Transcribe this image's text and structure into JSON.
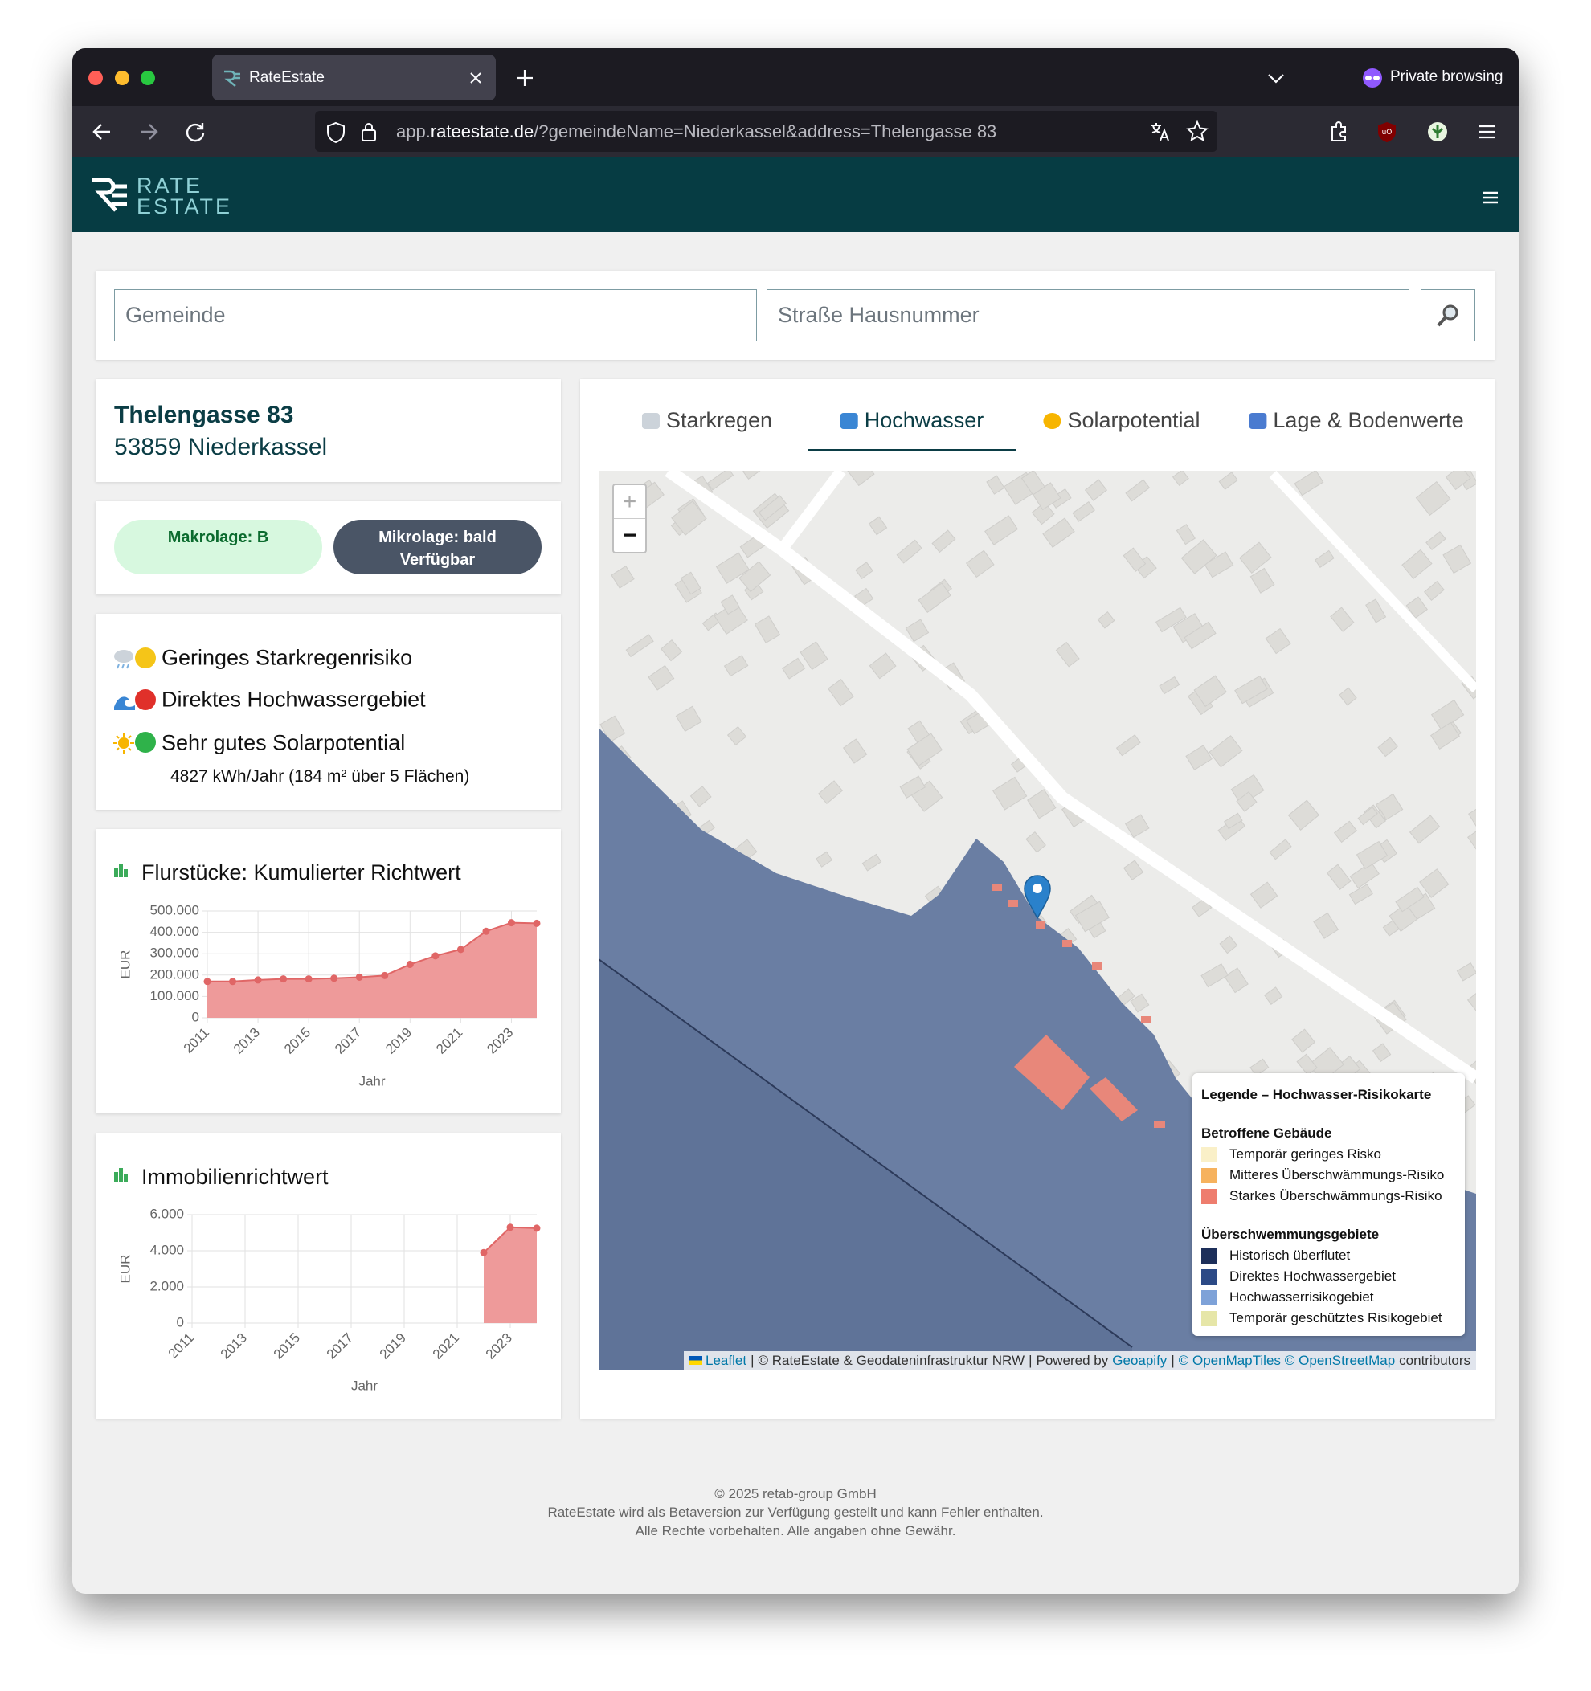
{
  "browser": {
    "tab_title": "RateEstate",
    "private_label": "Private browsing",
    "url_host_prefix": "app.",
    "url_domain": "rateestate.de",
    "url_path": "/?gemeindeName=Niederkassel&address=Thelengasse 83"
  },
  "header": {
    "logo_line1": "RATE",
    "logo_line2": "ESTATE"
  },
  "search": {
    "municipality_placeholder": "Gemeinde",
    "address_placeholder": "Straße Hausnummer"
  },
  "address": {
    "street": "Thelengasse 83",
    "city": "53859 Niederkassel"
  },
  "badges": [
    {
      "text": "Makrolage: B"
    },
    {
      "text": "Mikrolage: bald Verfügbar"
    }
  ],
  "risks": [
    {
      "text": "Geringes Starkregenrisiko",
      "status_color": "#f5c518"
    },
    {
      "text": "Direktes Hochwassergebiet",
      "status_color": "#e0302a"
    },
    {
      "text": "Sehr gutes Solarpotential",
      "status_color": "#2fb24a"
    }
  ],
  "solar_detail": "4827 kWh/Jahr (184 m² über 5 Flächen)",
  "chart_data": [
    {
      "type": "area",
      "title": "Flurstücke: Kumulierter Richtwert",
      "x_label": "Jahr",
      "y_label": "EUR",
      "categories": [
        "2011",
        null,
        "2013",
        null,
        "2015",
        null,
        "2017",
        null,
        "2019",
        null,
        "2021",
        null,
        "2023",
        null
      ],
      "values": [
        170000,
        170000,
        177000,
        182000,
        182000,
        185000,
        190000,
        198000,
        250000,
        290000,
        320000,
        405000,
        445000,
        442000
      ],
      "color": "#e06666",
      "fill_color": "#ee9a9a",
      "ylim": [
        0,
        500000
      ],
      "yticks": [
        0,
        {
          "value": 100000,
          "label": "100.000"
        },
        {
          "value": 200000,
          "label": "200.000"
        },
        {
          "value": 300000,
          "label": "300.000"
        },
        {
          "value": 400000,
          "label": "400.000"
        },
        {
          "value": 500000,
          "label": "500.000"
        }
      ],
      "grid": true
    },
    {
      "type": "area",
      "title": "Immobilienrichtwert",
      "x_label": "Jahr",
      "y_label": "EUR",
      "categories": [
        "2011",
        null,
        "2013",
        null,
        "2015",
        null,
        "2017",
        null,
        "2019",
        null,
        "2021",
        null,
        "2023",
        null
      ],
      "values": [
        null,
        null,
        null,
        null,
        null,
        null,
        null,
        null,
        null,
        null,
        null,
        3900,
        5300,
        5250
      ],
      "color": "#e06666",
      "fill_color": "#ee9a9a",
      "ylim": [
        0,
        6000
      ],
      "yticks": [
        0,
        {
          "value": 2000,
          "label": "2.000"
        },
        {
          "value": 4000,
          "label": "4.000"
        },
        {
          "value": 6000,
          "label": "6.000"
        }
      ],
      "grid": true
    }
  ],
  "tabs": [
    {
      "label": "Starkregen",
      "active": false
    },
    {
      "label": "Hochwasser",
      "active": true
    },
    {
      "label": "Solarpotential",
      "active": false
    },
    {
      "label": "Lage & Bodenwerte",
      "active": false
    }
  ],
  "map": {
    "zoom_in": "+",
    "zoom_out": "−",
    "legend": {
      "title": "Legende – Hochwasser-Risikokarte",
      "sections": [
        {
          "title": "Betroffene Gebäude",
          "items": [
            {
              "label": "Temporär geringes Risko",
              "color": "#faf0c8"
            },
            {
              "label": "Mitteres Überschwämmungs-Risiko",
              "color": "#f6b25e"
            },
            {
              "label": "Starkes Überschwämmungs-Risiko",
              "color": "#ee7d6e"
            }
          ]
        },
        {
          "title": "Überschwemmungsgebiete",
          "items": [
            {
              "label": "Historisch überflutet",
              "color": "#1d2f5a"
            },
            {
              "label": "Direktes Hochwassergebiet",
              "color": "#2c4a86"
            },
            {
              "label": "Hochwasserrisikogebiet",
              "color": "#7ea2d8"
            },
            {
              "label": "Temporär geschütztes Risikogebiet",
              "color": "#e6e6a8"
            }
          ]
        }
      ]
    },
    "attribution": [
      {
        "text": "Leaflet",
        "link": true
      },
      {
        "text": "|",
        "link": false
      },
      {
        "text": "© RateEstate & Geodateninfrastruktur NRW",
        "link": false
      },
      {
        "text": "|",
        "link": false
      },
      {
        "text": "Powered by",
        "link": false
      },
      {
        "text": "Geoapify",
        "link": true
      },
      {
        "text": "|",
        "link": false
      },
      {
        "text": "© OpenMapTiles",
        "link": true
      },
      {
        "text": "© OpenStreetMap",
        "link": true
      },
      {
        "text": "contributors",
        "link": false
      }
    ]
  },
  "footer": {
    "lines": [
      "© 2025 retab-group GmbH",
      "RateEstate wird als Betaversion zur Verfügung gestellt und kann Fehler enthalten.",
      "Alle Rechte vorbehalten. Alle angaben ohne Gewähr."
    ]
  }
}
